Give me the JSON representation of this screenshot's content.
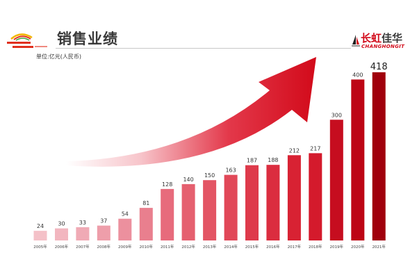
{
  "header": {
    "title": "销售业绩",
    "unit": "单位:亿元(人民币)"
  },
  "logo_right": {
    "brand_red": "长虹",
    "brand_dark": "佳华",
    "brand_en": "CHANGHONGIT"
  },
  "colors": {
    "accent": "#d20a1a",
    "title": "#3a3a3a"
  },
  "chart_data": {
    "type": "bar",
    "categories": [
      "2005年",
      "2006年",
      "2007年",
      "2008年",
      "2009年",
      "2010年",
      "2011年",
      "2012年",
      "2013年",
      "2014年",
      "2015年",
      "2016年",
      "2017年",
      "2018年",
      "2019年",
      "2020年",
      "2021年"
    ],
    "values": [
      24,
      30,
      33,
      37,
      54,
      81,
      128,
      140,
      150,
      163,
      187,
      188,
      212,
      217,
      300,
      400,
      418
    ],
    "data_labels": true,
    "grid": false,
    "legend": "none",
    "bar_colors": [
      "#f4c1c8",
      "#f2b6bf",
      "#f0aab5",
      "#ee9eaa",
      "#ec909e",
      "#e97f8e",
      "#e76b7c",
      "#e5606f",
      "#e35564",
      "#e14858",
      "#de3a4b",
      "#db2d3f",
      "#d82233",
      "#d41a2c",
      "#c60d1f",
      "#bd0515",
      "#a0000c"
    ]
  }
}
